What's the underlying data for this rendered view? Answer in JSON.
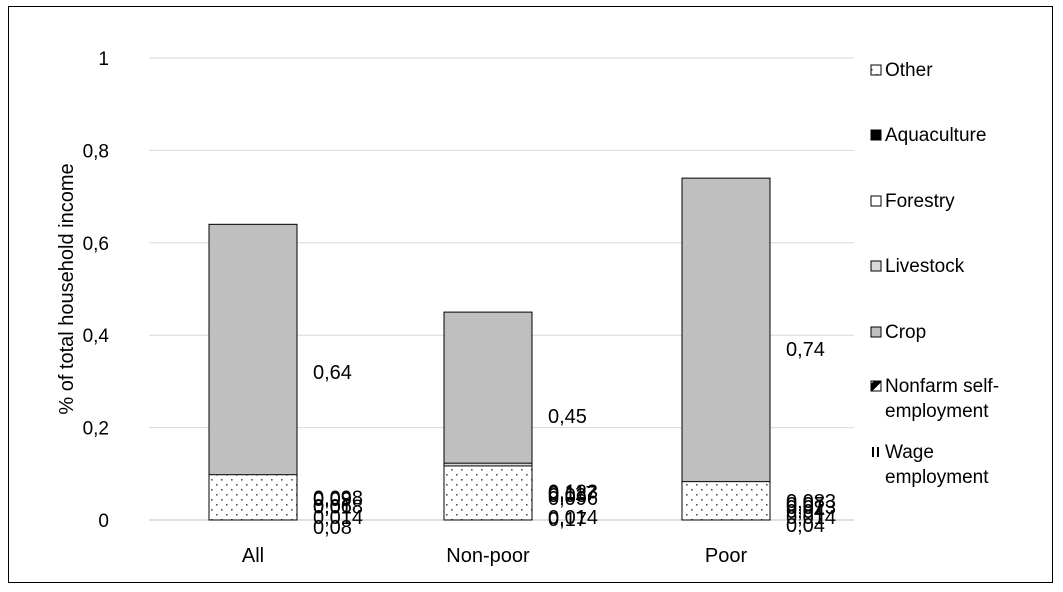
{
  "chart_data": {
    "type": "bar",
    "stacked": true,
    "ylabel": "% of total household income",
    "xlabel": "",
    "ylim": [
      0,
      1
    ],
    "yticks": [
      "0",
      "0,2",
      "0,4",
      "0,6",
      "0,8",
      "1"
    ],
    "ytick_values": [
      0,
      0.2,
      0.4,
      0.6,
      0.8,
      1
    ],
    "grid": true,
    "legend_position": "right",
    "categories": [
      "All",
      "Non-poor",
      "Poor"
    ],
    "series": [
      {
        "name": "Wage employment",
        "legend": [
          "Wage",
          "employment"
        ],
        "pattern": "vertical-lines",
        "values": [
          0.08,
          0.17,
          0.04
        ],
        "labels": [
          "0,08",
          "0,17",
          "0,04"
        ]
      },
      {
        "name": "Nonfarm self-employment",
        "legend": [
          "Nonfarm self-",
          "employment"
        ],
        "pattern": "diagonal-stripes",
        "values": [
          0.018,
          0.03,
          0.013
        ],
        "labels": [
          "0,018",
          "0,03",
          "0,013"
        ]
      },
      {
        "name": "Crop",
        "legend": [
          "Crop"
        ],
        "pattern": "solid",
        "color": "#bfbfbf",
        "values": [
          0.64,
          0.45,
          0.74
        ],
        "labels": [
          "0,64",
          "0,45",
          "0,74"
        ]
      },
      {
        "name": "Livestock",
        "legend": [
          "Livestock"
        ],
        "pattern": "solid",
        "color": "#d9d9d9",
        "values": [
          0.09,
          0.123,
          0.07
        ],
        "labels": [
          "0,09",
          "0,123",
          "0,07"
        ]
      },
      {
        "name": "Forestry",
        "legend": [
          "Forestry"
        ],
        "pattern": "solid",
        "color": "#ffffff",
        "values": [
          0.06,
          0.096,
          0.04
        ],
        "labels": [
          "0,06",
          "0,096",
          "0,04"
        ]
      },
      {
        "name": "Aquaculture",
        "legend": [
          "Aquaculture"
        ],
        "pattern": "solid",
        "color": "#000000",
        "values": [
          0.014,
          0.014,
          0.014
        ],
        "labels": [
          "0,014",
          "0,014",
          "0,014"
        ]
      },
      {
        "name": "Other",
        "legend": [
          "Other"
        ],
        "pattern": "dots",
        "values": [
          0.098,
          0.117,
          0.083
        ],
        "labels": [
          "0,098",
          "0,117",
          "0,083"
        ]
      }
    ]
  }
}
